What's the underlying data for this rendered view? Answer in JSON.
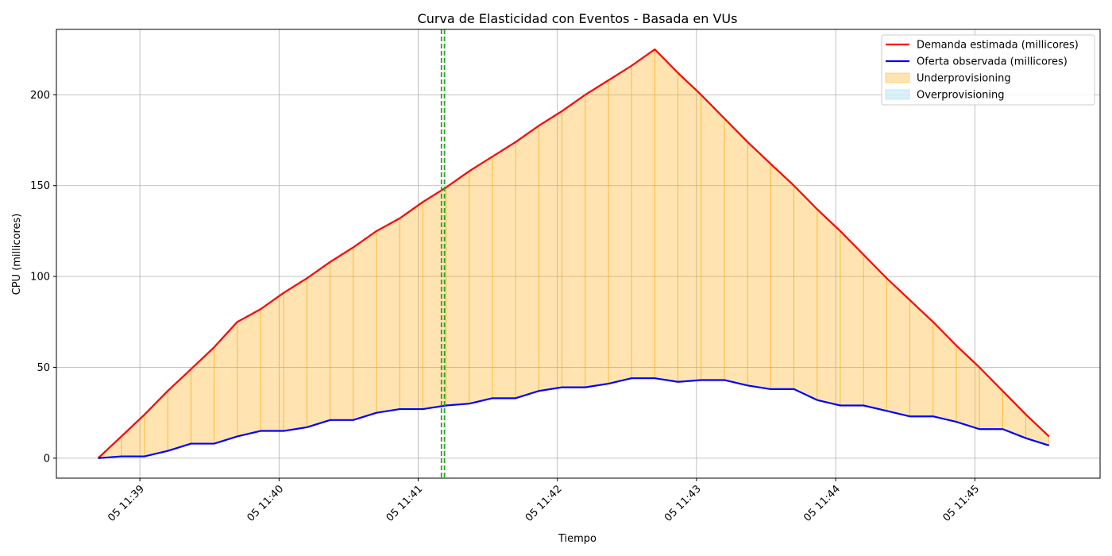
{
  "chart_data": {
    "type": "line",
    "title": "Curva de Elasticidad con Eventos - Basada en VUs",
    "xlabel": "Tiempo",
    "ylabel": "CPU (millicores)",
    "x_unit": "minutes after 11:38",
    "xlim": [
      0.4,
      7.9
    ],
    "ylim": [
      -11,
      236
    ],
    "yticks": [
      0,
      50,
      100,
      150,
      200
    ],
    "xticks": [
      {
        "value": 1,
        "label": "05 11:39"
      },
      {
        "value": 2,
        "label": "05 11:40"
      },
      {
        "value": 3,
        "label": "05 11:41"
      },
      {
        "value": 4,
        "label": "05 11:42"
      },
      {
        "value": 5,
        "label": "05 11:43"
      },
      {
        "value": 6,
        "label": "05 11:44"
      },
      {
        "value": 7,
        "label": "05 11:45"
      }
    ],
    "x": [
      0.7,
      0.867,
      1.033,
      1.2,
      1.367,
      1.533,
      1.7,
      1.867,
      2.033,
      2.2,
      2.367,
      2.533,
      2.7,
      2.867,
      3.033,
      3.2,
      3.367,
      3.533,
      3.7,
      3.867,
      4.033,
      4.2,
      4.367,
      4.533,
      4.7,
      4.867,
      5.033,
      5.2,
      5.367,
      5.533,
      5.7,
      5.867,
      6.033,
      6.2,
      6.367,
      6.533,
      6.7,
      6.867,
      7.033,
      7.2,
      7.367,
      7.533
    ],
    "series": [
      {
        "name": "Demanda estimada (millicores)",
        "color": "#ff0000",
        "values": [
          0,
          12,
          24,
          37,
          49,
          61,
          75,
          82,
          91,
          99,
          108,
          116,
          125,
          132,
          141,
          149,
          158,
          166,
          174,
          183,
          191,
          200,
          208,
          216,
          225,
          212,
          200,
          187,
          174,
          162,
          150,
          137,
          125,
          112,
          99,
          87,
          75,
          62,
          50,
          37,
          24,
          12
        ]
      },
      {
        "name": "Oferta observada (millicores)",
        "color": "#0000ff",
        "values": [
          0,
          1,
          1,
          4,
          8,
          8,
          12,
          15,
          15,
          17,
          21,
          21,
          25,
          27,
          27,
          29,
          30,
          33,
          33,
          37,
          39,
          39,
          41,
          44,
          44,
          42,
          43,
          43,
          40,
          38,
          38,
          32,
          29,
          29,
          26,
          23,
          23,
          20,
          16,
          16,
          11,
          7
        ]
      }
    ],
    "areas": [
      {
        "name": "Underprovisioning",
        "color": "#ffa500",
        "opacity": 0.3
      },
      {
        "name": "Overprovisioning",
        "color": "#87ceeb",
        "opacity": 0.3
      }
    ],
    "event_lines": [
      {
        "x": 3.167,
        "color": "#2ca02c",
        "style": "dashed"
      },
      {
        "x": 3.189,
        "color": "#2ca02c",
        "style": "dashed"
      }
    ],
    "grid": true,
    "legend_position": "top-right"
  }
}
